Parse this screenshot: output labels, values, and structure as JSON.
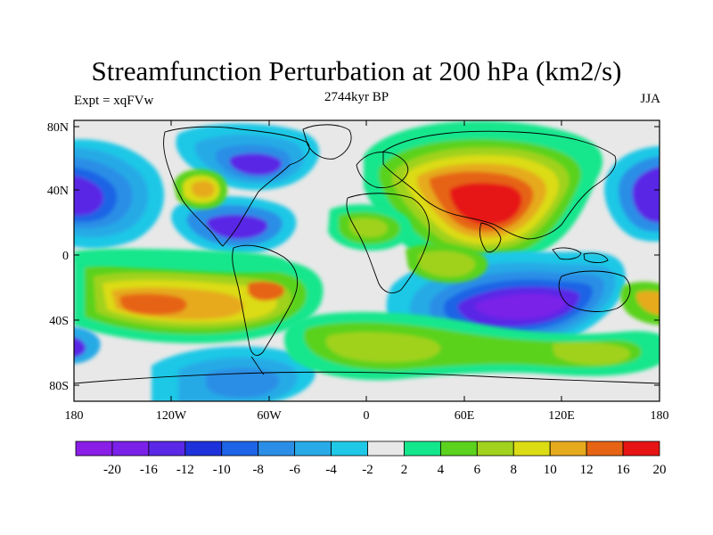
{
  "title": "Streamfunction Perturbation at 200 hPa (km2/s)",
  "left_label": "Expt = xqFVw",
  "center_label": "2744kyr BP",
  "right_label": "JJA",
  "lat_ticks": [
    "80N",
    "40N",
    "0",
    "40S",
    "80S"
  ],
  "lon_ticks": [
    "180",
    "120W",
    "60W",
    "0",
    "60E",
    "120E",
    "180"
  ],
  "colorbar": {
    "labels": [
      "-20",
      "-16",
      "-12",
      "-10",
      "-8",
      "-6",
      "-4",
      "-2",
      "2",
      "4",
      "6",
      "8",
      "10",
      "12",
      "16",
      "20"
    ],
    "colors": [
      "#8a1ee6",
      "#7a20e8",
      "#5a28e6",
      "#1e32dc",
      "#1e64e6",
      "#2a8ee6",
      "#28aae6",
      "#1ec8e6",
      "#e8e8e8",
      "#14e68c",
      "#5ad21e",
      "#a0d21e",
      "#dcdc14",
      "#e6aa1e",
      "#e66414",
      "#e61414"
    ]
  },
  "map": {
    "projection": "cylindrical-equidistant",
    "field": "streamfunction perturbation",
    "level": "200 hPa",
    "units": "km2/s",
    "coastlines": "black"
  }
}
